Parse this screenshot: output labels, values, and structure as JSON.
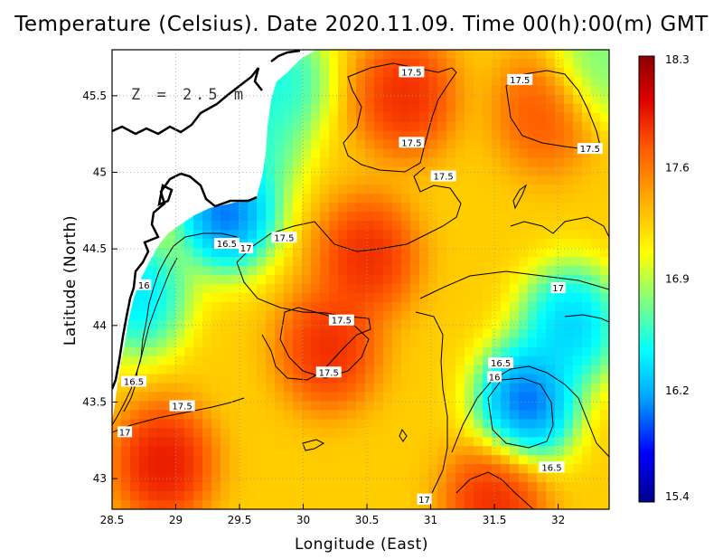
{
  "title": "Temperature (Celsius). Date 2020.11.09. Time 00(h):00(m) GMT",
  "depth_label": "Z = 2.5 m",
  "xlabel": "Longitude (East)",
  "ylabel": "Latitude (North)",
  "x_ticks": [
    "28.5",
    "29",
    "29.5",
    "30",
    "30.5",
    "31",
    "31.5",
    "32"
  ],
  "y_ticks": [
    "43",
    "43.5",
    "44",
    "44.5",
    "45",
    "45.5"
  ],
  "colorbar_ticks": [
    "18.3",
    "17.6",
    "16.9",
    "16.2",
    "15.4"
  ],
  "contour_labels": [
    "17.5",
    "17.5",
    "17.5",
    "17.5",
    "17.5",
    "17.5",
    "17.5",
    "17.5",
    "17.5",
    "16.5",
    "17",
    "16",
    "16.5",
    "17",
    "17",
    "17",
    "16.5",
    "16",
    "16.5",
    "17"
  ],
  "chart_data": {
    "type": "heatmap",
    "title": "Temperature (Celsius). Date 2020.11.09. Time 00(h):00(m) GMT",
    "xlabel": "Longitude (East)",
    "ylabel": "Latitude (North)",
    "xlim": [
      28.5,
      32.4
    ],
    "ylim": [
      42.8,
      45.8
    ],
    "colorbar_range": [
      15.4,
      18.3
    ],
    "colormap": [
      "#00008b",
      "#0000ff",
      "#00aaff",
      "#00ffff",
      "#80ff80",
      "#ffff00",
      "#ffaa00",
      "#ff5500",
      "#e00000",
      "#8b0000"
    ],
    "grid": true,
    "contour_levels": [
      16,
      16.5,
      17,
      17.5
    ],
    "contour_labels": [
      {
        "text": "17.5",
        "x": 30.85,
        "y": 45.65
      },
      {
        "text": "17.5",
        "x": 31.7,
        "y": 45.6
      },
      {
        "text": "17.5",
        "x": 30.85,
        "y": 45.19
      },
      {
        "text": "17.5",
        "x": 32.25,
        "y": 45.15
      },
      {
        "text": "17.5",
        "x": 31.1,
        "y": 44.97
      },
      {
        "text": "17.5",
        "x": 29.85,
        "y": 44.57
      },
      {
        "text": "17.5",
        "x": 30.3,
        "y": 44.03
      },
      {
        "text": "17.5",
        "x": 30.2,
        "y": 43.69
      },
      {
        "text": "17.5",
        "x": 29.05,
        "y": 43.47
      },
      {
        "text": "16.5",
        "x": 29.4,
        "y": 44.53
      },
      {
        "text": "17",
        "x": 29.55,
        "y": 44.5
      },
      {
        "text": "16",
        "x": 28.75,
        "y": 44.26
      },
      {
        "text": "16.5",
        "x": 28.67,
        "y": 43.63
      },
      {
        "text": "17",
        "x": 28.6,
        "y": 43.3
      },
      {
        "text": "17",
        "x": 32.0,
        "y": 44.24
      },
      {
        "text": "17",
        "x": 30.95,
        "y": 42.86
      },
      {
        "text": "16.5",
        "x": 31.55,
        "y": 43.75
      },
      {
        "text": "16",
        "x": 31.5,
        "y": 43.66
      },
      {
        "text": "16.5",
        "x": 31.95,
        "y": 43.07
      },
      {
        "text": "17",
        "x": 30.95,
        "y": 42.86
      }
    ],
    "field_centers": [
      {
        "x": 30.8,
        "y": 45.5,
        "v": 18.0
      },
      {
        "x": 31.9,
        "y": 45.4,
        "v": 17.8
      },
      {
        "x": 30.5,
        "y": 44.45,
        "v": 18.0
      },
      {
        "x": 30.2,
        "y": 43.85,
        "v": 18.0
      },
      {
        "x": 28.9,
        "y": 43.1,
        "v": 18.1
      },
      {
        "x": 31.5,
        "y": 42.85,
        "v": 18.0
      },
      {
        "x": 31.75,
        "y": 43.5,
        "v": 15.5
      },
      {
        "x": 32.1,
        "y": 44.0,
        "v": 15.9
      },
      {
        "x": 29.4,
        "y": 44.75,
        "v": 15.5
      },
      {
        "x": 28.7,
        "y": 44.2,
        "v": 16.0
      },
      {
        "x": 29.8,
        "y": 45.6,
        "v": 16.2
      },
      {
        "x": 32.3,
        "y": 45.7,
        "v": 16.5
      },
      {
        "x": 29.6,
        "y": 45.2,
        "v": 16.3
      }
    ],
    "background_value": 17.2
  }
}
